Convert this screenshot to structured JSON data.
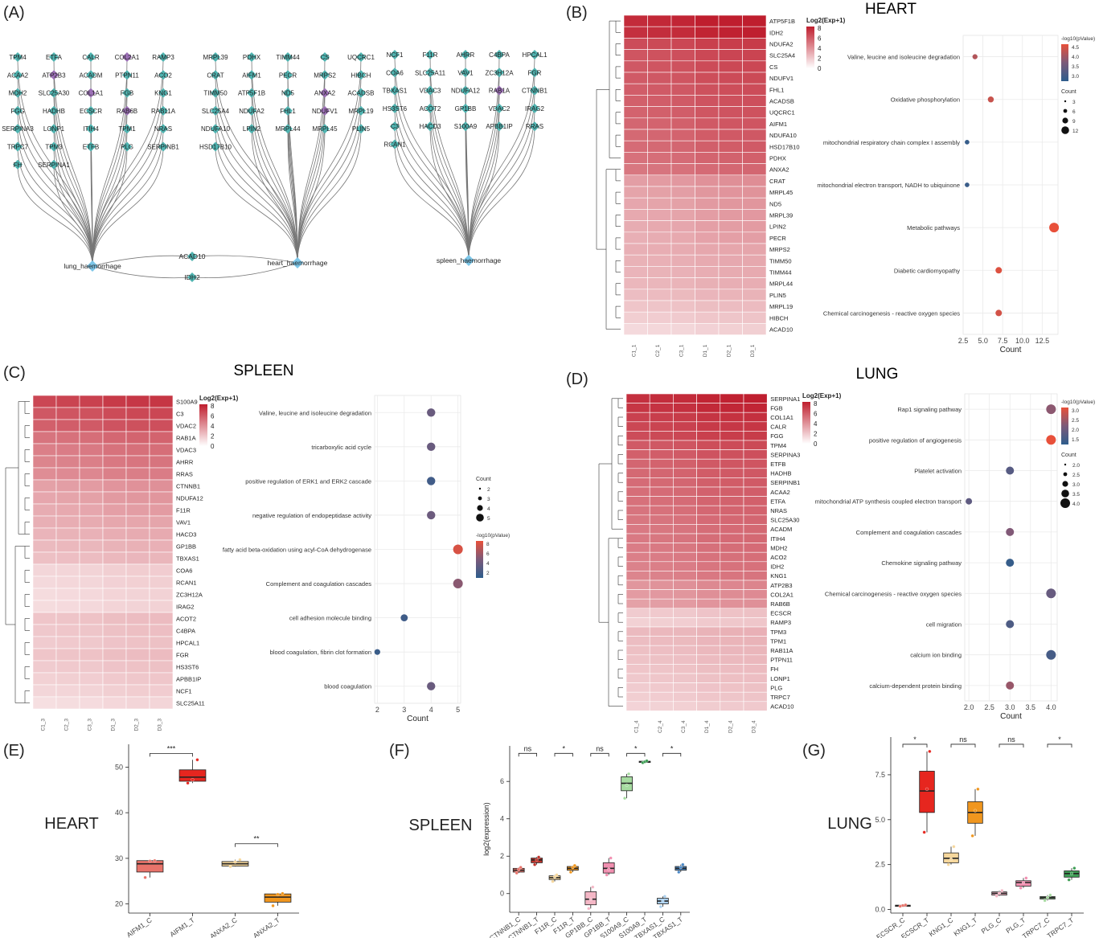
{
  "panel_letters": [
    "(A)",
    "(B)",
    "(C)",
    "(D)",
    "(E)",
    "(F)",
    "(G)"
  ],
  "network": {
    "hubs": {
      "lung": "lung_haemorrhage",
      "heart": "heart_haemorrhage",
      "spleen": "spleen_haemorrhage"
    },
    "shared": [
      "ACAD10",
      "IDH2"
    ],
    "lung_rows": [
      [
        "TPM4",
        "ETFA",
        "CALR",
        "COL2A1",
        "RAMP3"
      ],
      [
        "ACAA2",
        "ATP2B3",
        "ACADM",
        "PTPN11",
        "ACO2"
      ],
      [
        "MDH2",
        "SLC25A30",
        "COL1A1",
        "FGB",
        "KNG1"
      ],
      [
        "FGG",
        "HADHB",
        "ECSCR",
        "RAB6B",
        "RAB11A"
      ],
      [
        "SERPINA3",
        "LONP1",
        "ITIH4",
        "TPM1",
        "NRAS"
      ],
      [
        "TRPC7",
        "TPM3",
        "ETFB",
        "PLG",
        "SERPINB1"
      ],
      [
        "FH",
        "SERPINA1"
      ]
    ],
    "heart_rows": [
      [
        "MRPL39",
        "PDHX",
        "TIMM44",
        "CS",
        "UQCRC1"
      ],
      [
        "CRAT",
        "AIFM1",
        "PECR",
        "MRPS2",
        "HIBCH"
      ],
      [
        "TIMM50",
        "ATP5F1B",
        "ND5",
        "ANXA2",
        "ACADSB"
      ],
      [
        "SLC25A4",
        "NDUFA2",
        "FHL1",
        "NDUFV1",
        "MRPL19"
      ],
      [
        "NDUFA10",
        "LPIN2",
        "MRPL44",
        "MRPL45",
        "PLIN5"
      ],
      [
        "HSD17B10"
      ]
    ],
    "spleen_rows": [
      [
        "NCF1",
        "F11R",
        "AHRR",
        "C4BPA",
        "HPCAL1"
      ],
      [
        "COA6",
        "SLC25A11",
        "VAV1",
        "ZC3H12A",
        "FGR"
      ],
      [
        "TBXAS1",
        "VDAC3",
        "NDUFA12",
        "RAB1A",
        "CTNNB1"
      ],
      [
        "HS3ST6",
        "ACOT2",
        "GP1BB",
        "VDAC2",
        "IRAG2"
      ],
      [
        "C3",
        "HACD3",
        "S100A9",
        "APBB1IP",
        "RRAS"
      ],
      [
        "RCAN1"
      ]
    ],
    "purple_nodes": [
      "COL2A1",
      "ATP2B3",
      "COL1A1",
      "RAB6B",
      "ANXA2",
      "NDUFV1",
      "RAB1A"
    ],
    "colors": {
      "node": "#4fb3b0",
      "purple": "#9b6fb5",
      "hub": "#7cc6e8",
      "edge": "#777777"
    }
  },
  "panel_titles": {
    "B": "HEART",
    "C": "SPLEEN",
    "D": "LUNG"
  },
  "heatmap_legend": {
    "title": "Log2(Exp+1)",
    "ticks": [
      "8",
      "6",
      "4",
      "2",
      "0"
    ]
  },
  "heatmaps": {
    "B": {
      "columns": [
        "C1_1",
        "C2_1",
        "C3_1",
        "D1_1",
        "D2_1",
        "D3_1"
      ],
      "rows": [
        "ATP5F1B",
        "IDH2",
        "NDUFA2",
        "SLC25A4",
        "CS",
        "NDUFV1",
        "FHL1",
        "ACADSB",
        "UQCRC1",
        "AIFM1",
        "NDUFA10",
        "HSD17B10",
        "PDHX",
        "ANXA2",
        "CRAT",
        "MRPL45",
        "ND5",
        "MRPL39",
        "LPIN2",
        "PECR",
        "MRPS2",
        "TIMM50",
        "TIMM44",
        "MRPL44",
        "PLIN5",
        "MRPL19",
        "HIBCH",
        "ACAD10"
      ],
      "values": [
        7.8,
        7.6,
        6.6,
        6.3,
        6.2,
        6.1,
        6.0,
        5.9,
        5.8,
        5.7,
        5.6,
        5.5,
        5.3,
        5.1,
        3.7,
        3.5,
        3.4,
        3.3,
        3.2,
        3.1,
        3.0,
        2.9,
        2.8,
        2.7,
        2.5,
        2.2,
        1.9,
        1.5
      ]
    },
    "C": {
      "columns": [
        "C1_3",
        "C2_3",
        "C3_3",
        "D1_3",
        "D2_3",
        "D3_3"
      ],
      "rows": [
        "S100A9",
        "C3",
        "VDAC2",
        "RAB1A",
        "VDAC3",
        "AHRR",
        "RRAS",
        "CTNNB1",
        "NDUFA12",
        "F11R",
        "VAV1",
        "HACD3",
        "GP1BB",
        "TBXAS1",
        "COA6",
        "RCAN1",
        "ZC3H12A",
        "IRAG2",
        "ACOT2",
        "C4BPA",
        "HPCAL1",
        "FGR",
        "HS3ST6",
        "APBB1IP",
        "NCF1",
        "SLC25A11"
      ],
      "values": [
        6.8,
        6.2,
        5.9,
        5.2,
        4.8,
        4.6,
        4.3,
        3.6,
        3.4,
        3.2,
        3.0,
        2.8,
        2.6,
        2.4,
        1.6,
        1.5,
        1.4,
        1.4,
        2.2,
        2.1,
        2.0,
        2.2,
        2.0,
        1.8,
        1.6,
        1.3
      ]
    },
    "D": {
      "columns": [
        "C1_4",
        "C2_4",
        "C3_4",
        "D1_4",
        "D2_4",
        "D3_4"
      ],
      "rows": [
        "SERPINA1",
        "FGB",
        "COL1A1",
        "CALR",
        "FGG",
        "TPM4",
        "SERPINA3",
        "ETFB",
        "HADHB",
        "SERPINB1",
        "ACAA2",
        "ETFA",
        "NRAS",
        "SLC25A30",
        "ACADM",
        "ITIH4",
        "MDH2",
        "ACO2",
        "IDH2",
        "KNG1",
        "ATP2B3",
        "COL2A1",
        "RAB6B",
        "ECSCR",
        "RAMP3",
        "TPM3",
        "TPM1",
        "RAB11A",
        "PTPN11",
        "FH",
        "LONP1",
        "PLG",
        "TRPC7",
        "ACAD10"
      ],
      "values": [
        7.6,
        7.4,
        7.0,
        6.8,
        6.6,
        6.1,
        5.9,
        5.7,
        5.6,
        5.5,
        5.4,
        5.3,
        5.2,
        5.1,
        5.0,
        5.0,
        4.9,
        4.8,
        4.7,
        4.6,
        4.0,
        3.8,
        3.6,
        2.0,
        1.8,
        2.6,
        2.5,
        2.4,
        2.3,
        2.2,
        2.1,
        2.0,
        1.9,
        1.7
      ]
    }
  },
  "chart_data": [
    {
      "id": "B_dot",
      "type": "scatter",
      "xlabel": "Count",
      "xlim": [
        2.5,
        14.5
      ],
      "xticks": [
        2.5,
        5.0,
        7.5,
        10.0,
        12.5
      ],
      "xtick_labels": [
        "2.5",
        "5.0",
        "7.5",
        "10.0",
        "12.5"
      ],
      "terms": [
        "Valine, leucine and isoleucine degradation",
        "Oxidative phosphorylation",
        "mitochondrial respiratory chain complex I assembly",
        "mitochondrial electron transport, NADH to ubiquinone",
        "Metabolic pathways",
        "Diabetic cardiomyopathy",
        "Chemical carcinogenesis - reactive oxygen species"
      ],
      "counts": [
        4,
        6,
        3,
        3,
        14,
        7,
        7
      ],
      "neglog10p": [
        4.3,
        4.5,
        2.9,
        2.95,
        4.8,
        4.7,
        4.6
      ],
      "color_legend": {
        "title": "-log10(pValue)",
        "ticks": [
          "4.5",
          "4.0",
          "3.5",
          "3.0"
        ]
      },
      "size_legend": {
        "title": "Count",
        "ticks": [
          "3",
          "6",
          "9",
          "12"
        ]
      }
    },
    {
      "id": "C_dot",
      "type": "scatter",
      "xlabel": "Count",
      "xlim": [
        1.9,
        5.1
      ],
      "xticks": [
        2,
        3,
        4,
        5
      ],
      "xtick_labels": [
        "2",
        "3",
        "4",
        "5"
      ],
      "terms": [
        "Valine, leucine and isoleucine degradation",
        "tricarboxylic acid cycle",
        "positive regulation of ERK1 and ERK2 cascade",
        "negative regulation of endopeptidase activity",
        "fatty acid beta-oxidation using acyl-CoA dehydrogenase",
        "Complement and coagulation cascades",
        "cell adhesion molecule binding",
        "blood coagulation, fibrin clot formation",
        "blood coagulation"
      ],
      "counts": [
        4,
        4,
        4,
        4,
        5,
        5,
        3,
        2,
        4
      ],
      "neglog10p": [
        4.0,
        4.0,
        2.3,
        4.1,
        7.5,
        5.2,
        2.2,
        2.0,
        4.0
      ],
      "color_legend": {
        "title": "-log10(pValue)",
        "ticks": [
          "8",
          "6",
          "4",
          "2"
        ]
      },
      "size_legend": {
        "title": "Count",
        "ticks": [
          "2",
          "3",
          "4",
          "5"
        ]
      }
    },
    {
      "id": "D_dot",
      "type": "scatter",
      "xlabel": "Count",
      "xlim": [
        1.9,
        4.15
      ],
      "xticks": [
        2.0,
        2.5,
        3.0,
        3.5,
        4.0
      ],
      "xtick_labels": [
        "2.0",
        "2.5",
        "3.0",
        "3.5",
        "4.0"
      ],
      "terms": [
        "Rap1 signaling pathway",
        "positive regulation of angiogenesis",
        "Platelet activation",
        "mitochondrial ATP synthesis coupled electron transport",
        "Complement and coagulation cascades",
        "Chemokine signaling pathway",
        "Chemical carcinogenesis - reactive oxygen species",
        "cell migration",
        "calcium ion binding",
        "calcium-dependent protein binding"
      ],
      "counts": [
        4,
        4,
        3,
        2,
        3,
        3,
        4,
        3,
        4,
        3
      ],
      "neglog10p": [
        2.5,
        3.3,
        1.9,
        2.0,
        2.4,
        1.5,
        2.1,
        1.8,
        1.7,
        2.6
      ],
      "color_legend": {
        "title": "-log10(pValue)",
        "ticks": [
          "3.0",
          "2.5",
          "2.0",
          "1.5"
        ]
      },
      "size_legend": {
        "title": "Count",
        "ticks": [
          "2.0",
          "2.5",
          "3.0",
          "3.5",
          "4.0"
        ]
      }
    },
    {
      "id": "E_box",
      "type": "box",
      "title": "HEART",
      "categories": [
        "AIFM1_C",
        "AIFM1_T",
        "ANXA2_C",
        "ANXA2_T"
      ],
      "colors": [
        "#e8736a",
        "#e6261f",
        "#f6d79c",
        "#f0961e"
      ],
      "boxes": [
        {
          "min": 25.8,
          "q1": 27.0,
          "median": 28.8,
          "q3": 29.5,
          "max": 29.6,
          "points": [
            25.8,
            29.4,
            29.5
          ]
        },
        {
          "min": 46.5,
          "q1": 46.9,
          "median": 47.8,
          "q3": 49.4,
          "max": 51.6,
          "points": [
            46.5,
            47.2,
            51.6
          ]
        },
        {
          "min": 28.2,
          "q1": 28.3,
          "median": 28.8,
          "q3": 29.3,
          "max": 29.7,
          "points": [
            28.2,
            29.2,
            29.7
          ]
        },
        {
          "min": 19.6,
          "q1": 20.4,
          "median": 21.5,
          "q3": 22.2,
          "max": 22.3,
          "points": [
            19.6,
            22.1,
            22.3
          ]
        }
      ],
      "ylim": [
        18,
        55
      ],
      "yticks": [
        20,
        30,
        40,
        50
      ],
      "ytick_labels": [
        "20",
        "30",
        "40",
        "50"
      ],
      "ylabel": "",
      "significance": [
        {
          "pair": [
            0,
            1
          ],
          "label": "***",
          "y": 53.0
        },
        {
          "pair": [
            2,
            3
          ],
          "label": "**",
          "y": 33.2
        }
      ]
    },
    {
      "id": "F_box",
      "type": "box",
      "title": "SPLEEN",
      "categories": [
        "CTNNB1_C",
        "CTNNB1_T",
        "F11R_C",
        "F11R_T",
        "GP1BB_C",
        "GP1BB_T",
        "S100A9_C",
        "S100A9_T",
        "TBXAS1_C",
        "TBXAS1_T"
      ],
      "colors": [
        "#e8736a",
        "#c0332b",
        "#f6d79c",
        "#f0961e",
        "#f4b7c6",
        "#f18fb0",
        "#a6dba0",
        "#3e9e55",
        "#a9cfee",
        "#4a88c7"
      ],
      "boxes": [
        {
          "min": 1.1,
          "q1": 1.15,
          "median": 1.25,
          "q3": 1.35,
          "max": 1.4,
          "points": [
            1.1,
            1.3,
            1.4
          ]
        },
        {
          "min": 1.55,
          "q1": 1.65,
          "median": 1.8,
          "q3": 1.9,
          "max": 1.95,
          "points": [
            1.55,
            1.8,
            1.95
          ]
        },
        {
          "min": 0.65,
          "q1": 0.75,
          "median": 0.85,
          "q3": 0.95,
          "max": 1.0,
          "points": [
            0.65,
            0.9,
            1.0
          ]
        },
        {
          "min": 1.15,
          "q1": 1.25,
          "median": 1.35,
          "q3": 1.45,
          "max": 1.5,
          "points": [
            1.15,
            1.4,
            1.5
          ]
        },
        {
          "min": -0.8,
          "q1": -0.6,
          "median": -0.3,
          "q3": 0.1,
          "max": 0.35,
          "points": [
            -0.8,
            -0.3,
            0.35
          ]
        },
        {
          "min": 1.0,
          "q1": 1.1,
          "median": 1.35,
          "q3": 1.65,
          "max": 1.9,
          "points": [
            1.0,
            1.3,
            1.9
          ]
        },
        {
          "min": 5.1,
          "q1": 5.5,
          "median": 5.9,
          "q3": 6.25,
          "max": 6.4,
          "points": [
            5.1,
            5.8,
            6.4
          ]
        },
        {
          "min": 7.0,
          "q1": 7.02,
          "median": 7.05,
          "q3": 7.08,
          "max": 7.1,
          "points": [
            7.0,
            7.05,
            7.1
          ]
        },
        {
          "min": -0.7,
          "q1": -0.55,
          "median": -0.4,
          "q3": -0.25,
          "max": -0.15,
          "points": [
            -0.7,
            -0.4,
            -0.15
          ]
        },
        {
          "min": 1.15,
          "q1": 1.25,
          "median": 1.35,
          "q3": 1.45,
          "max": 1.55,
          "points": [
            1.15,
            1.4,
            1.55
          ]
        }
      ],
      "ylim": [
        -1.0,
        7.9
      ],
      "yticks": [
        0,
        2,
        4,
        6
      ],
      "ytick_labels": [
        "0",
        "2",
        "4",
        "6"
      ],
      "ylabel": "log2(expression)",
      "significance": [
        {
          "pair": [
            0,
            1
          ],
          "label": "ns",
          "y": 7.5
        },
        {
          "pair": [
            2,
            3
          ],
          "label": "*",
          "y": 7.5
        },
        {
          "pair": [
            4,
            5
          ],
          "label": "ns",
          "y": 7.5
        },
        {
          "pair": [
            6,
            7
          ],
          "label": "*",
          "y": 7.5
        },
        {
          "pair": [
            8,
            9
          ],
          "label": "*",
          "y": 7.5
        }
      ]
    },
    {
      "id": "G_box",
      "type": "box",
      "title": "LUNG",
      "categories": [
        "ECSCR_C",
        "ECSCR_T",
        "KNG1_C",
        "KNG1_T",
        "PLG_C",
        "PLG_T",
        "TRPC7_C",
        "TRPC7_T"
      ],
      "colors": [
        "#e8736a",
        "#e6261f",
        "#f6d79c",
        "#f0961e",
        "#f4b7c6",
        "#f18fb0",
        "#a6dba0",
        "#3e9e55"
      ],
      "boxes": [
        {
          "min": 0.18,
          "q1": 0.2,
          "median": 0.22,
          "q3": 0.24,
          "max": 0.25,
          "points": [
            0.18,
            0.22,
            0.25
          ]
        },
        {
          "min": 4.3,
          "q1": 5.4,
          "median": 6.6,
          "q3": 7.7,
          "max": 8.8,
          "points": [
            4.3,
            6.7,
            8.8
          ]
        },
        {
          "min": 2.5,
          "q1": 2.6,
          "median": 2.85,
          "q3": 3.15,
          "max": 3.5,
          "points": [
            2.5,
            2.8,
            3.5
          ]
        },
        {
          "min": 4.1,
          "q1": 4.8,
          "median": 5.4,
          "q3": 6.0,
          "max": 6.7,
          "points": [
            4.1,
            5.5,
            6.7
          ]
        },
        {
          "min": 0.75,
          "q1": 0.8,
          "median": 0.9,
          "q3": 0.98,
          "max": 1.05,
          "points": [
            0.75,
            0.9,
            1.05
          ]
        },
        {
          "min": 1.2,
          "q1": 1.3,
          "median": 1.5,
          "q3": 1.6,
          "max": 1.75,
          "points": [
            1.2,
            1.5,
            1.75
          ]
        },
        {
          "min": 0.5,
          "q1": 0.58,
          "median": 0.66,
          "q3": 0.72,
          "max": 0.8,
          "points": [
            0.5,
            0.66,
            0.8
          ]
        },
        {
          "min": 1.65,
          "q1": 1.8,
          "median": 2.0,
          "q3": 2.15,
          "max": 2.3,
          "points": [
            1.65,
            2.0,
            2.3
          ]
        }
      ],
      "ylim": [
        -0.2,
        9.6
      ],
      "yticks": [
        0.0,
        2.5,
        5.0,
        7.5
      ],
      "ytick_labels": [
        "0.0",
        "2.5",
        "5.0",
        "7.5"
      ],
      "ylabel": "",
      "significance": [
        {
          "pair": [
            0,
            1
          ],
          "label": "*",
          "y": 9.2
        },
        {
          "pair": [
            2,
            3
          ],
          "label": "ns",
          "y": 9.2
        },
        {
          "pair": [
            4,
            5
          ],
          "label": "ns",
          "y": 9.2
        },
        {
          "pair": [
            6,
            7
          ],
          "label": "*",
          "y": 9.2
        }
      ]
    }
  ]
}
